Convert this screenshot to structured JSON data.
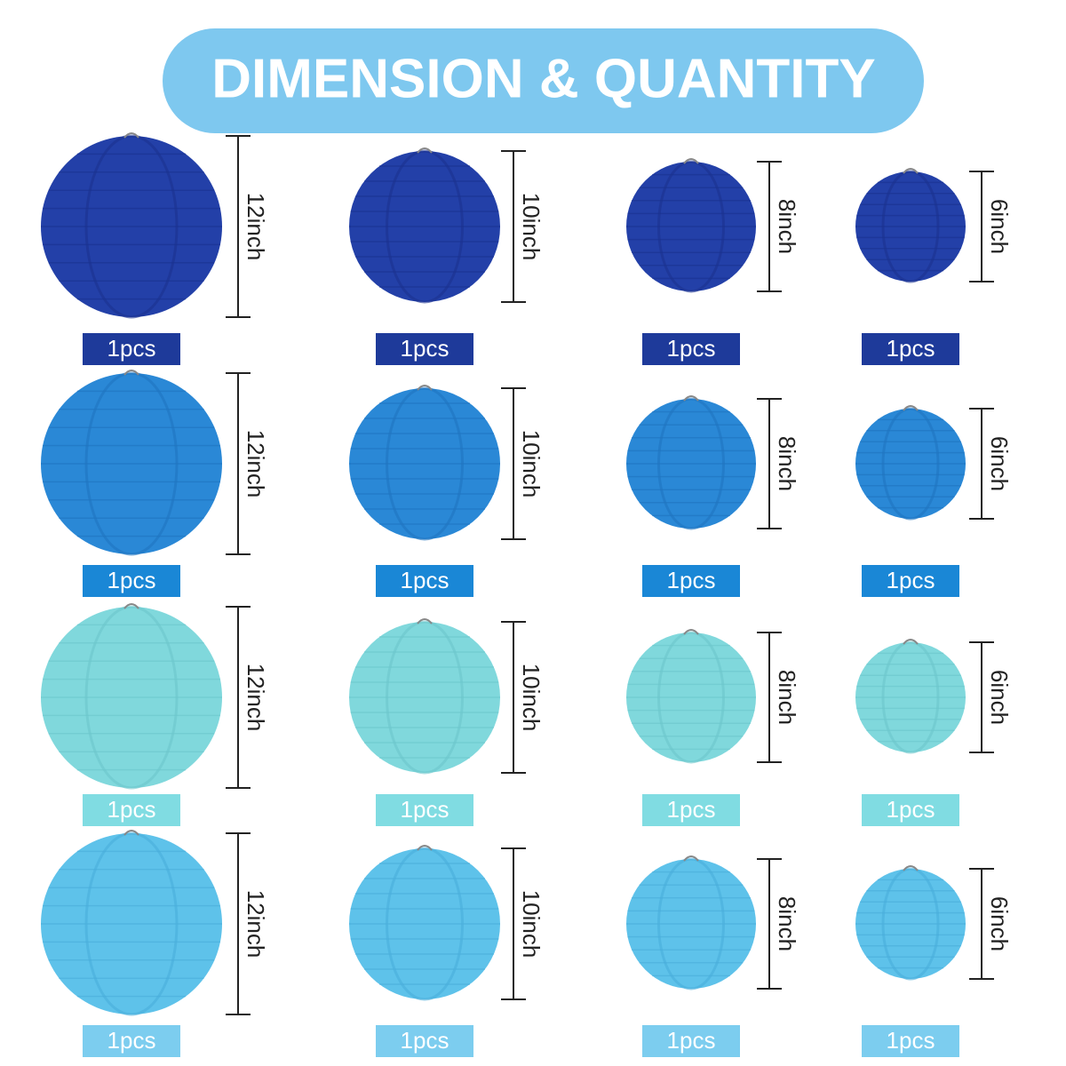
{
  "title": "DIMENSION & QUANTITY",
  "rows": [
    {
      "items": [
        {
          "size": "12inch",
          "quantity": "1pcs"
        },
        {
          "size": "10inch",
          "quantity": "1pcs"
        },
        {
          "size": "8inch",
          "quantity": "1pcs"
        },
        {
          "size": "6inch",
          "quantity": "1pcs"
        }
      ]
    },
    {
      "items": [
        {
          "size": "12inch",
          "quantity": "1pcs"
        },
        {
          "size": "10inch",
          "quantity": "1pcs"
        },
        {
          "size": "8inch",
          "quantity": "1pcs"
        },
        {
          "size": "6inch",
          "quantity": "1pcs"
        }
      ]
    },
    {
      "items": [
        {
          "size": "12inch",
          "quantity": "1pcs"
        },
        {
          "size": "10inch",
          "quantity": "1pcs"
        },
        {
          "size": "8inch",
          "quantity": "1pcs"
        },
        {
          "size": "6inch",
          "quantity": "1pcs"
        }
      ]
    },
    {
      "items": [
        {
          "size": "12inch",
          "quantity": "1pcs"
        },
        {
          "size": "10inch",
          "quantity": "1pcs"
        },
        {
          "size": "8inch",
          "quantity": "1pcs"
        },
        {
          "size": "6inch",
          "quantity": "1pcs"
        }
      ]
    }
  ]
}
